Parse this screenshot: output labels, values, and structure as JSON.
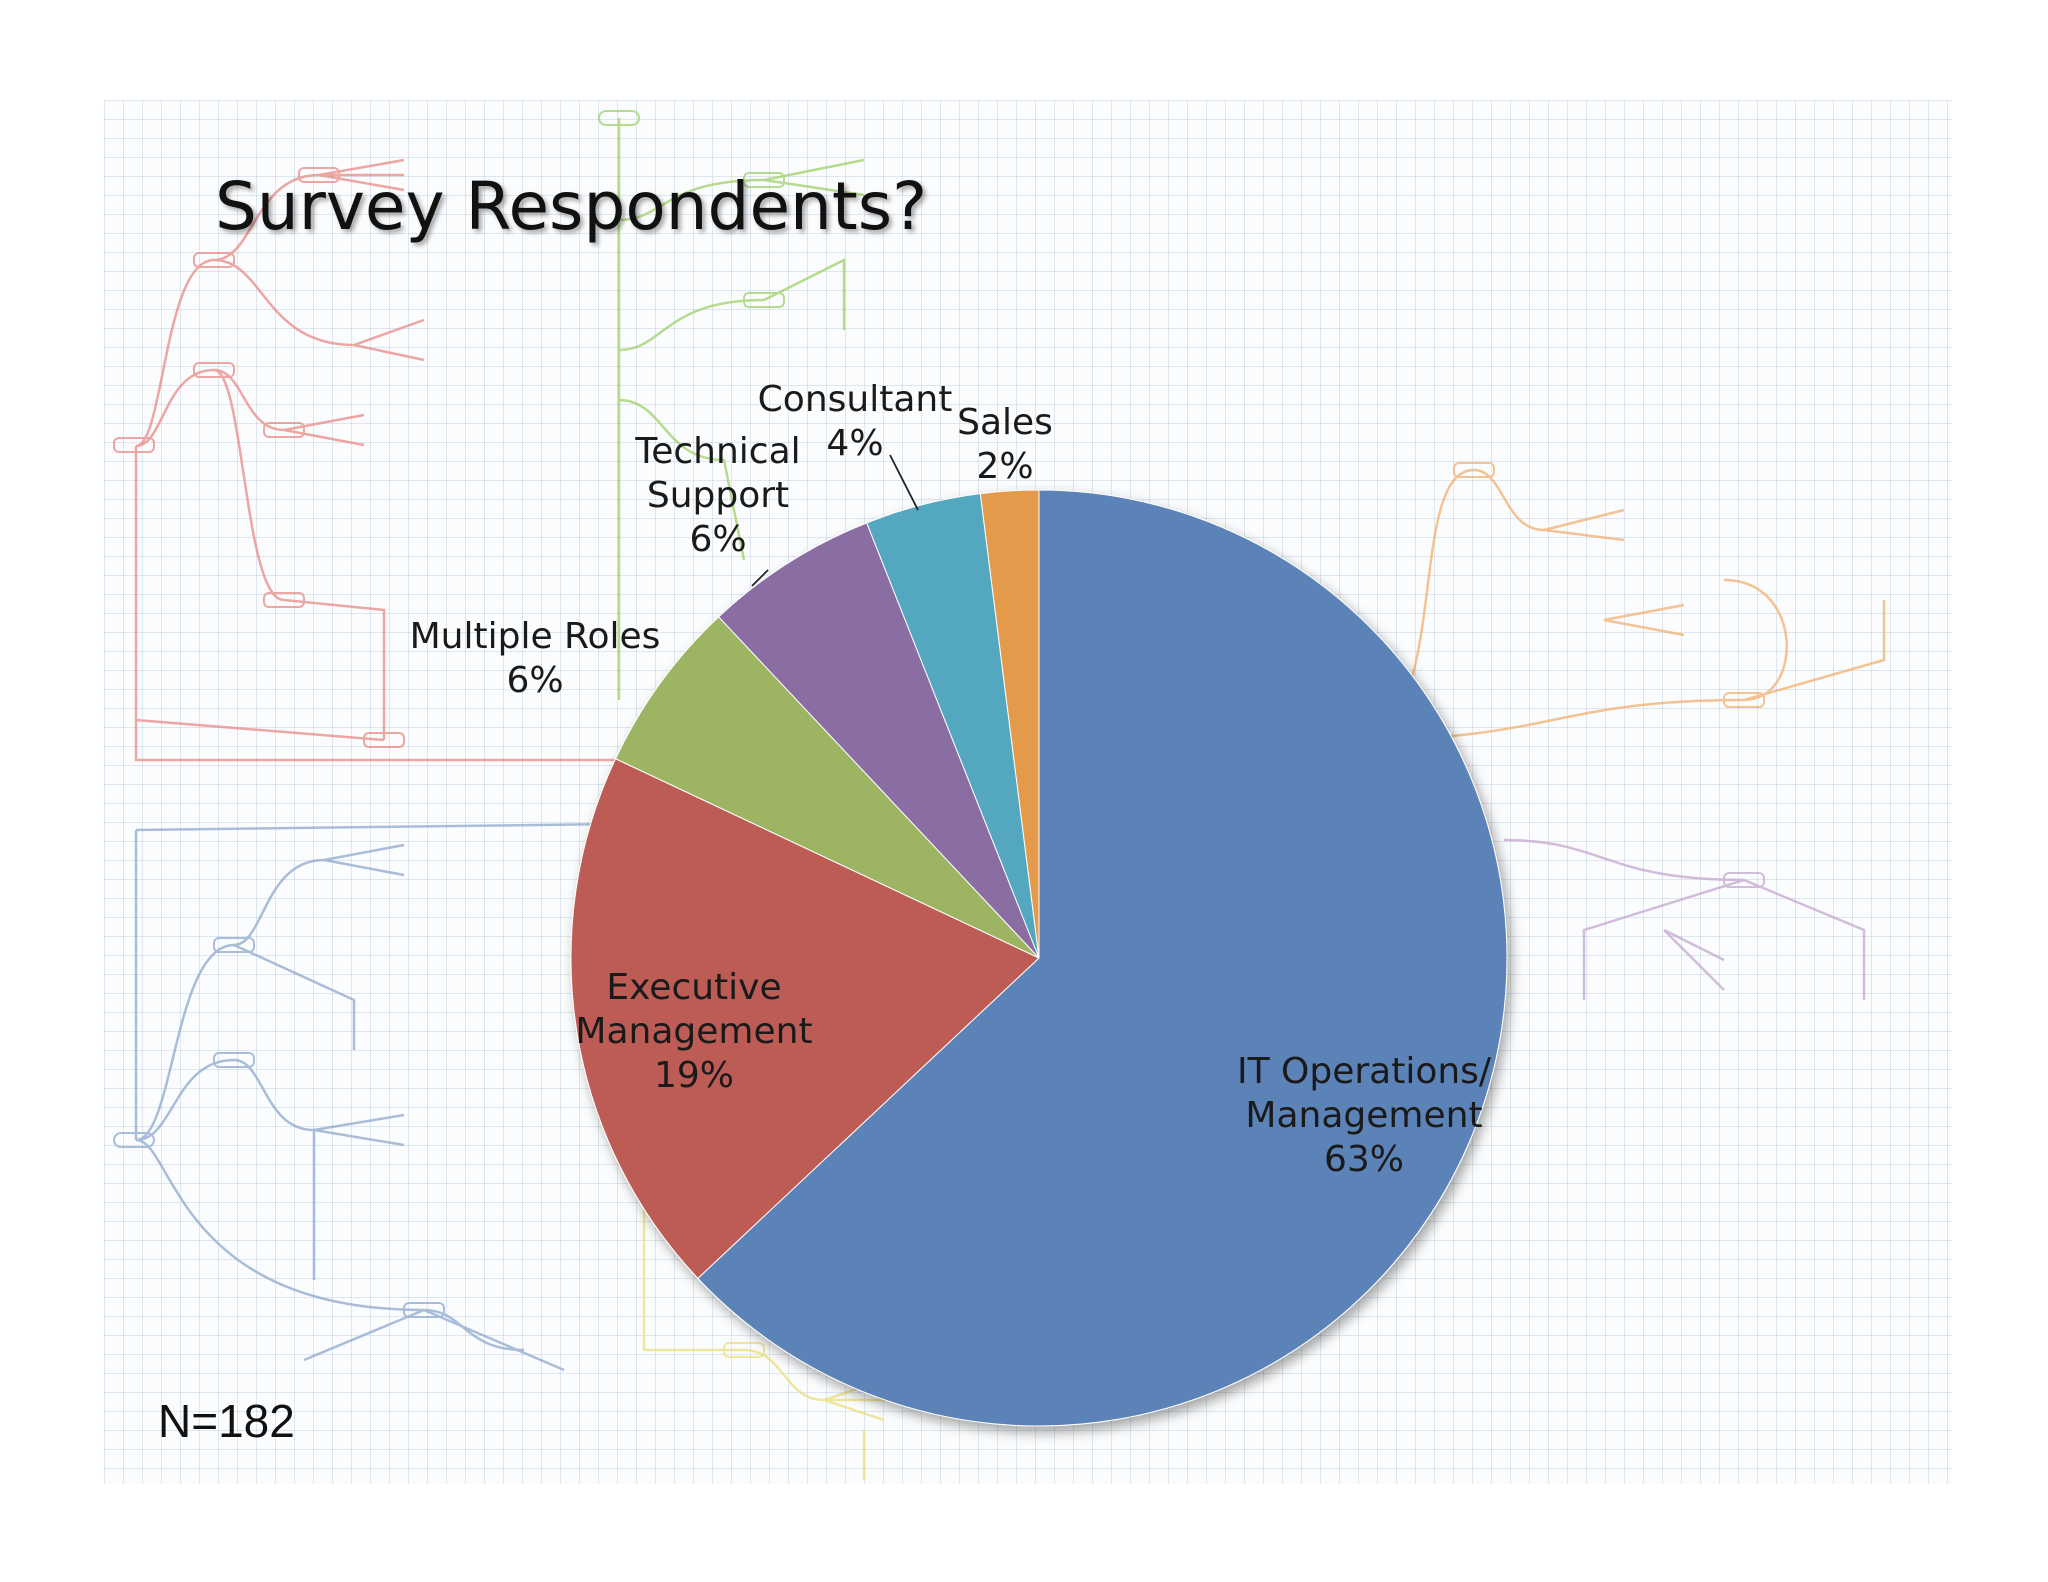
{
  "slide": {
    "title": "Survey Respondents?",
    "sample_size_label": "N=182"
  },
  "chart_data": {
    "type": "pie",
    "title": "Survey Respondents?",
    "sample_size": 182,
    "start_angle_deg": 0,
    "direction": "clockwise",
    "slices": [
      {
        "name": "IT Operations/ Management",
        "lines": [
          "IT Operations/",
          "Management",
          "63%"
        ],
        "value": 63,
        "color": "#5b83b8"
      },
      {
        "name": "Executive Management",
        "lines": [
          "Executive",
          "Management",
          "19%"
        ],
        "value": 19,
        "color": "#bd5b55"
      },
      {
        "name": "Multiple Roles",
        "lines": [
          "Multiple Roles",
          "6%"
        ],
        "value": 6,
        "color": "#9db564"
      },
      {
        "name": "Technical Support",
        "lines": [
          "Technical",
          "Support",
          "6%"
        ],
        "value": 6,
        "color": "#8a6da3"
      },
      {
        "name": "Consultant",
        "lines": [
          "Consultant",
          "4%"
        ],
        "value": 4,
        "color": "#53a7bf"
      },
      {
        "name": "Sales",
        "lines": [
          "Sales",
          "2%"
        ],
        "value": 2,
        "color": "#e39a4b"
      }
    ]
  },
  "colors": {
    "mindmap_red": "#e88a86",
    "mindmap_green": "#9fd06a",
    "mindmap_orange": "#f2b070",
    "mindmap_blue": "#8fa9cc",
    "mindmap_yellow": "#eadf7a",
    "mindmap_purple": "#c4a8cf"
  }
}
